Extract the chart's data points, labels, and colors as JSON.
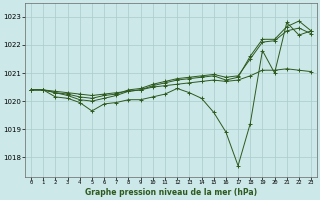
{
  "background_color": "#cce8e8",
  "grid_color": "#aacccc",
  "line_color": "#2d5a1e",
  "title": "Graphe pression niveau de la mer (hPa)",
  "xlim": [
    -0.5,
    23.5
  ],
  "ylim": [
    1017.3,
    1023.5
  ],
  "yticks": [
    1018,
    1019,
    1020,
    1021,
    1022,
    1023
  ],
  "xticks": [
    0,
    1,
    2,
    3,
    4,
    5,
    6,
    7,
    8,
    9,
    10,
    11,
    12,
    13,
    14,
    15,
    16,
    17,
    18,
    19,
    20,
    21,
    22,
    23
  ],
  "series": [
    {
      "x": [
        0,
        1,
        2,
        3,
        4,
        5,
        6,
        7,
        8,
        9,
        10,
        11,
        12,
        13,
        14,
        15,
        16,
        17,
        18,
        19,
        20,
        21,
        22,
        23
      ],
      "y": [
        1020.4,
        1020.4,
        1020.35,
        1020.3,
        1020.25,
        1020.2,
        1020.25,
        1020.3,
        1020.35,
        1020.4,
        1020.5,
        1020.55,
        1020.6,
        1020.65,
        1020.7,
        1020.75,
        1020.7,
        1020.75,
        1020.9,
        1021.1,
        1021.1,
        1021.15,
        1021.1,
        1021.05
      ]
    },
    {
      "x": [
        0,
        1,
        2,
        3,
        4,
        5,
        6,
        7,
        8,
        9,
        10,
        11,
        12,
        13,
        14,
        15,
        16,
        17,
        18,
        19,
        20,
        21,
        22,
        23
      ],
      "y": [
        1020.4,
        1020.4,
        1020.3,
        1020.25,
        1020.15,
        1020.1,
        1020.2,
        1020.25,
        1020.4,
        1020.45,
        1020.6,
        1020.7,
        1020.8,
        1020.85,
        1020.9,
        1020.95,
        1020.85,
        1020.9,
        1021.5,
        1022.1,
        1022.15,
        1022.5,
        1022.6,
        1022.4
      ]
    },
    {
      "x": [
        0,
        1,
        2,
        3,
        4,
        5,
        6,
        7,
        8,
        9,
        10,
        11,
        12,
        13,
        14,
        15,
        16,
        17,
        18,
        19,
        20,
        21,
        22,
        23
      ],
      "y": [
        1020.4,
        1020.4,
        1020.3,
        1020.2,
        1020.05,
        1020.0,
        1020.1,
        1020.2,
        1020.35,
        1020.4,
        1020.55,
        1020.65,
        1020.75,
        1020.8,
        1020.85,
        1020.9,
        1020.75,
        1020.85,
        1021.6,
        1022.2,
        1022.2,
        1022.65,
        1022.85,
        1022.5
      ]
    },
    {
      "x": [
        0,
        1,
        2,
        3,
        4,
        5,
        6,
        7,
        8,
        9,
        10,
        11,
        12,
        13,
        14,
        15,
        16,
        17,
        18,
        19,
        20,
        21,
        22,
        23
      ],
      "y": [
        1020.4,
        1020.4,
        1020.15,
        1020.1,
        1019.95,
        1019.65,
        1019.9,
        1019.95,
        1020.05,
        1020.05,
        1020.15,
        1020.25,
        1020.45,
        1020.3,
        1020.1,
        1019.6,
        1018.9,
        1017.7,
        1019.2,
        1021.8,
        1021.0,
        1022.8,
        1022.35,
        1022.5
      ]
    }
  ]
}
